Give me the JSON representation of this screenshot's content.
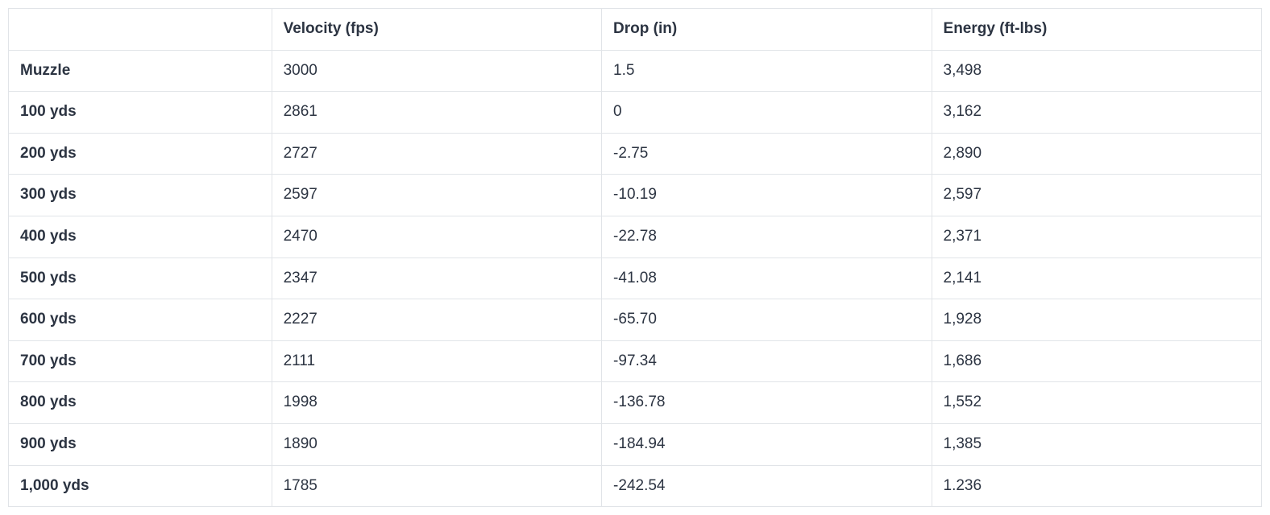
{
  "table": {
    "type": "table",
    "columns": [
      "",
      "Velocity (fps)",
      "Drop (in)",
      "Energy (ft-lbs)"
    ],
    "column_widths_pct": [
      21,
      26.33,
      26.33,
      26.33
    ],
    "rows": [
      {
        "label": "Muzzle",
        "velocity": "3000",
        "drop": "1.5",
        "energy": "3,498"
      },
      {
        "label": "100 yds",
        "velocity": "2861",
        "drop": "0",
        "energy": "3,162"
      },
      {
        "label": "200 yds",
        "velocity": "2727",
        "drop": "-2.75",
        "energy": "2,890"
      },
      {
        "label": "300 yds",
        "velocity": "2597",
        "drop": "-10.19",
        "energy": "2,597"
      },
      {
        "label": "400 yds",
        "velocity": "2470",
        "drop": "-22.78",
        "energy": "2,371"
      },
      {
        "label": "500 yds",
        "velocity": "2347",
        "drop": "-41.08",
        "energy": "2,141"
      },
      {
        "label": "600 yds",
        "velocity": "2227",
        "drop": "-65.70",
        "energy": "1,928"
      },
      {
        "label": "700 yds",
        "velocity": "2111",
        "drop": "-97.34",
        "energy": "1,686"
      },
      {
        "label": "800 yds",
        "velocity": "1998",
        "drop": "-136.78",
        "energy": "1,552"
      },
      {
        "label": "900 yds",
        "velocity": "1890",
        "drop": "-184.94",
        "energy": "1,385"
      },
      {
        "label": "1,000 yds",
        "velocity": "1785",
        "drop": "-242.54",
        "energy": "1.236"
      }
    ],
    "border_color": "#e1e4e8",
    "background_color": "#ffffff",
    "header_text_color": "#2c3442",
    "cell_text_color": "#2c3442",
    "font_size_pt": 14,
    "header_font_weight": 700,
    "label_font_weight": 700,
    "cell_font_weight": 400
  }
}
